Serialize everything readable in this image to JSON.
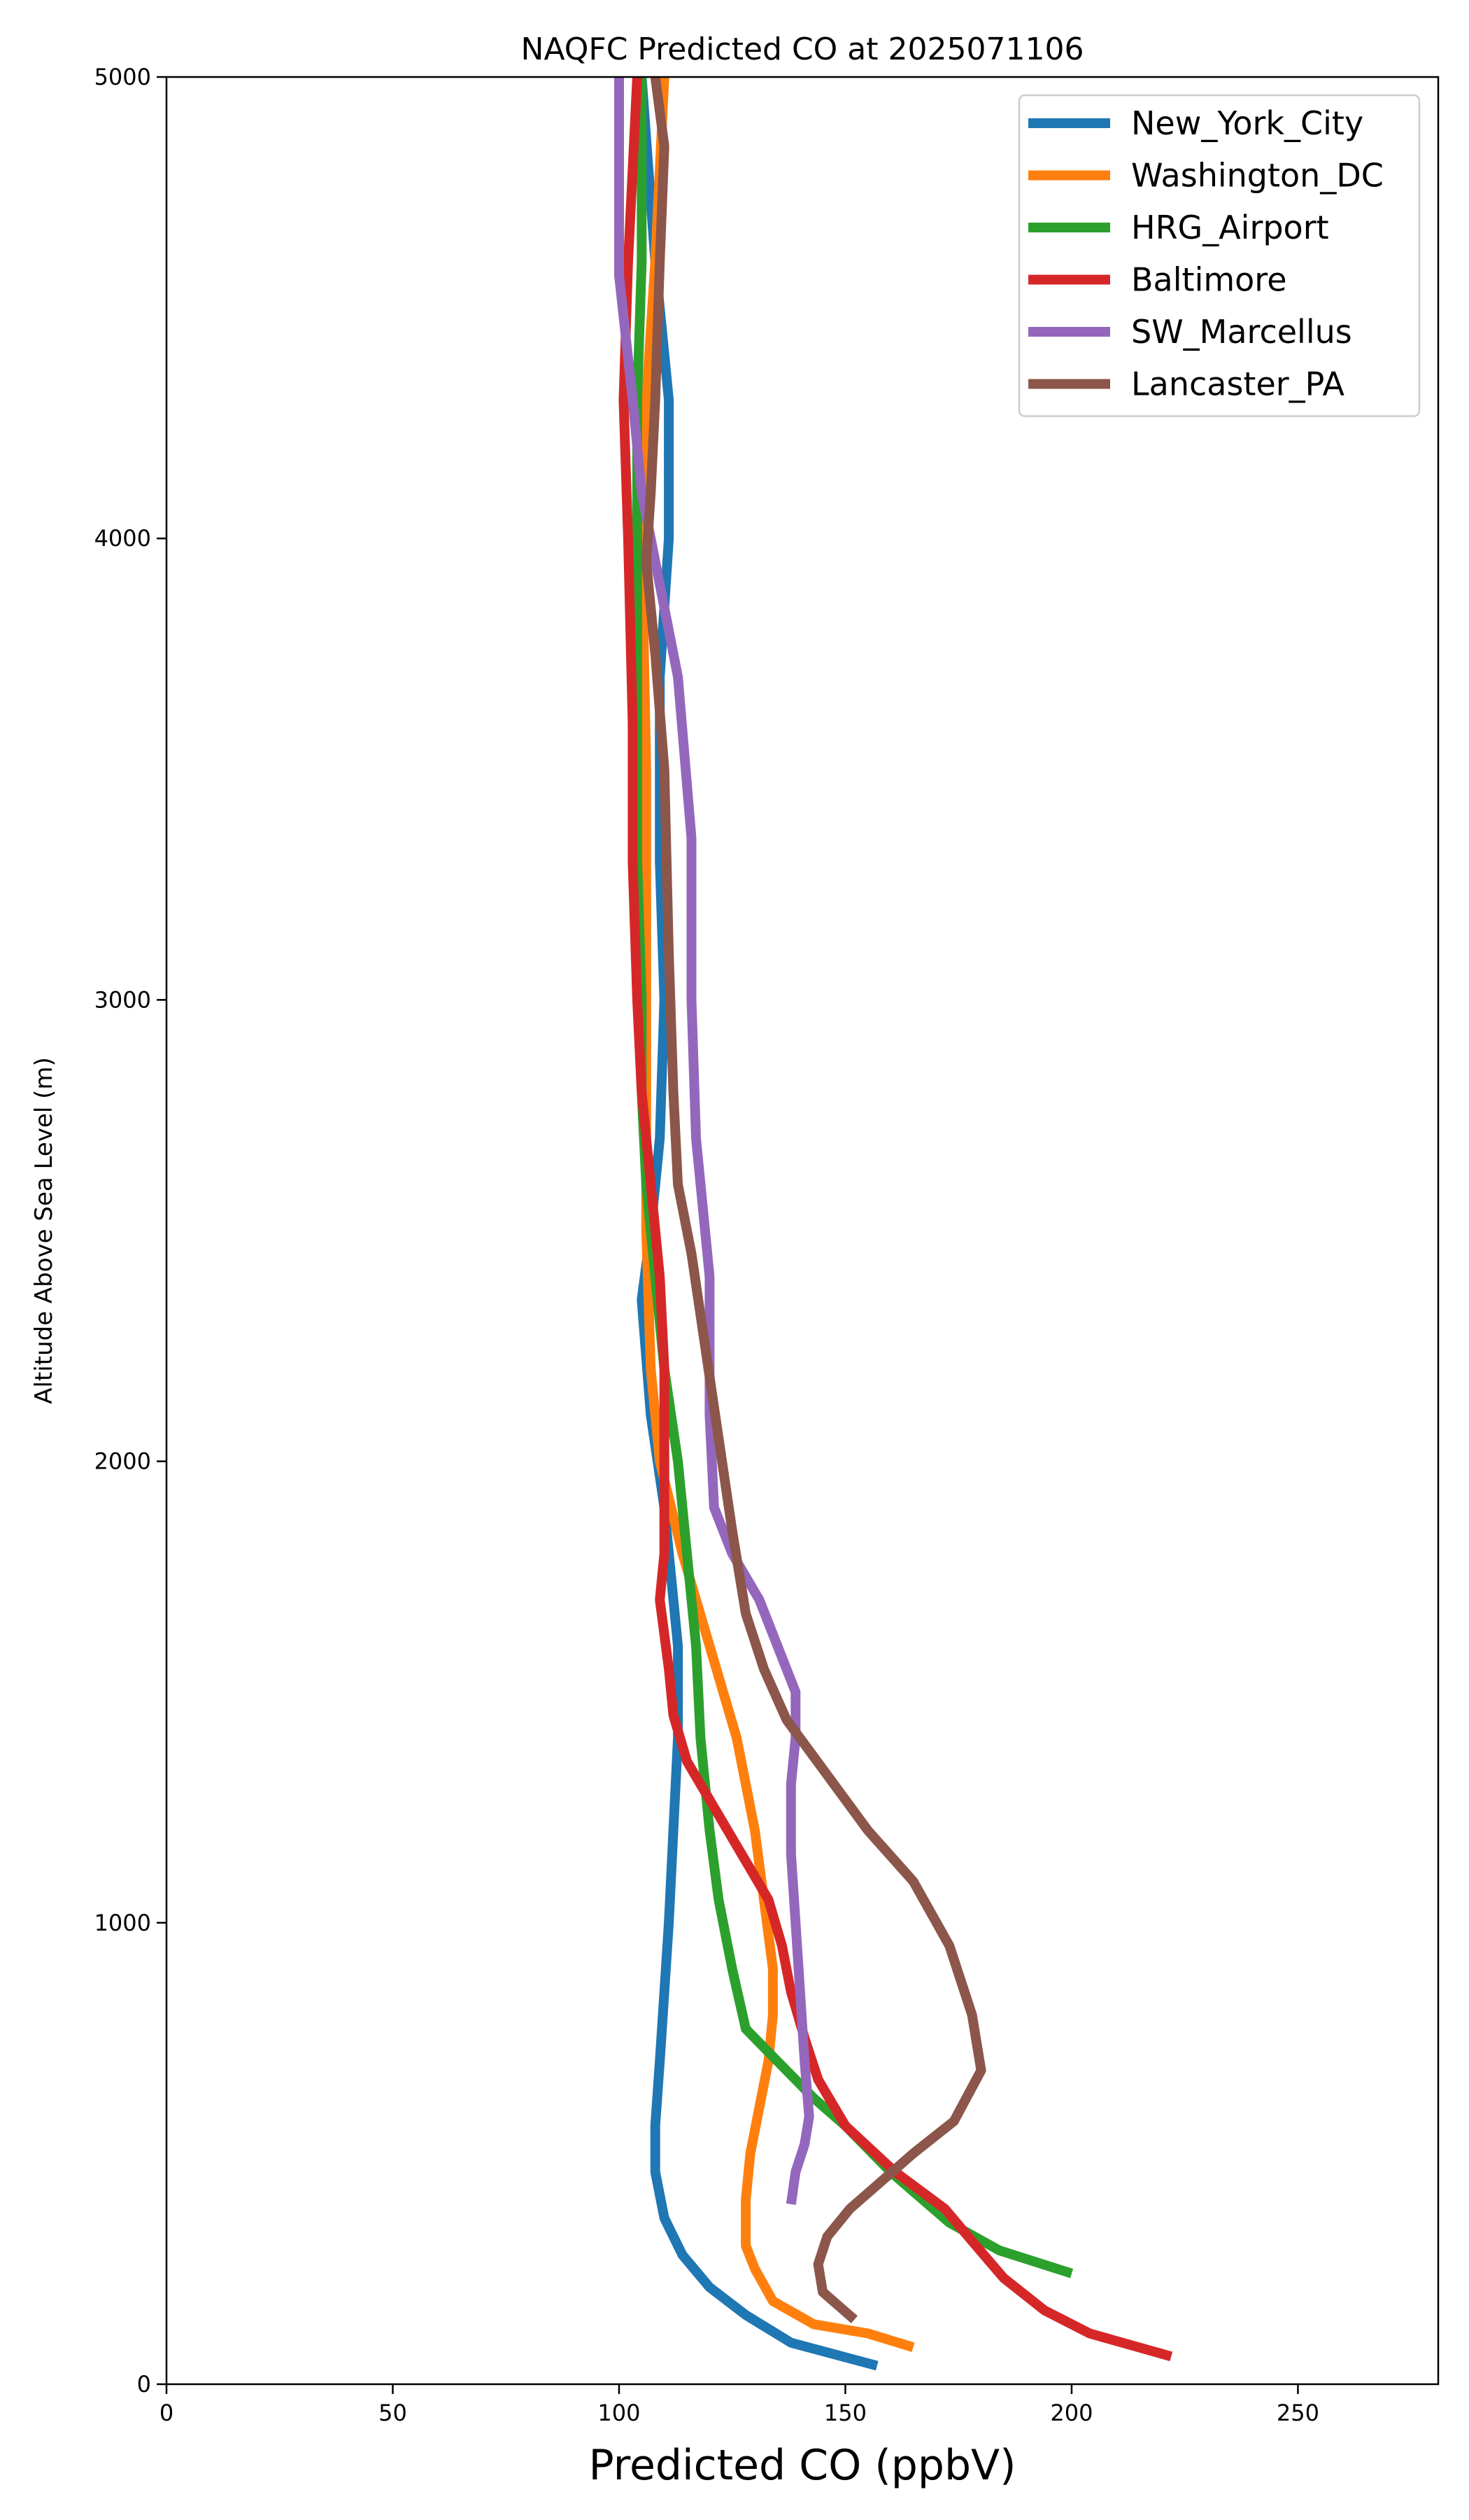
{
  "chart_data": {
    "type": "line",
    "title": "NAQFC Predicted CO at 2025071106",
    "xlabel": "Predicted CO (ppbV)",
    "ylabel": "Altitude Above Sea Level (m)",
    "xlim": [
      0,
      281
    ],
    "ylim": [
      0,
      5000
    ],
    "xticks": [
      0,
      50,
      100,
      150,
      200,
      250
    ],
    "yticks": [
      0,
      1000,
      2000,
      3000,
      4000,
      5000
    ],
    "grid": false,
    "legend_position": "top-right",
    "series": [
      {
        "name": "New_York_City",
        "color": "#1f77b4",
        "points": [
          [
            157,
            40
          ],
          [
            138,
            90
          ],
          [
            128,
            150
          ],
          [
            120,
            210
          ],
          [
            114,
            280
          ],
          [
            110,
            360
          ],
          [
            108,
            460
          ],
          [
            108,
            560
          ],
          [
            109,
            700
          ],
          [
            110,
            850
          ],
          [
            111,
            1000
          ],
          [
            112,
            1200
          ],
          [
            113,
            1400
          ],
          [
            113,
            1600
          ],
          [
            110,
            1900
          ],
          [
            107,
            2100
          ],
          [
            105,
            2350
          ],
          [
            107,
            2500
          ],
          [
            109,
            2700
          ],
          [
            110,
            3000
          ],
          [
            109,
            3300
          ],
          [
            109,
            3700
          ],
          [
            111,
            4000
          ],
          [
            111,
            4300
          ],
          [
            108,
            4600
          ],
          [
            105,
            5000
          ]
        ]
      },
      {
        "name": "Washington_DC",
        "color": "#ff7f0e",
        "points": [
          [
            165,
            80
          ],
          [
            155,
            110
          ],
          [
            143,
            130
          ],
          [
            134,
            180
          ],
          [
            130,
            250
          ],
          [
            128,
            300
          ],
          [
            128,
            400
          ],
          [
            129,
            500
          ],
          [
            131,
            600
          ],
          [
            133,
            700
          ],
          [
            134,
            800
          ],
          [
            134,
            900
          ],
          [
            132,
            1050
          ],
          [
            130,
            1200
          ],
          [
            126,
            1400
          ],
          [
            120,
            1600
          ],
          [
            114,
            1800
          ],
          [
            109,
            2000
          ],
          [
            107,
            2200
          ],
          [
            106,
            2500
          ],
          [
            106,
            3000
          ],
          [
            106,
            3500
          ],
          [
            105,
            4000
          ],
          [
            106,
            4300
          ],
          [
            108,
            4600
          ],
          [
            110,
            5000
          ]
        ]
      },
      {
        "name": "HRG_Airport",
        "color": "#2ca02c",
        "points": [
          [
            200,
            240
          ],
          [
            184,
            290
          ],
          [
            173,
            350
          ],
          [
            160,
            460
          ],
          [
            150,
            560
          ],
          [
            143,
            620
          ],
          [
            135,
            700
          ],
          [
            128,
            770
          ],
          [
            125,
            900
          ],
          [
            122,
            1050
          ],
          [
            120,
            1200
          ],
          [
            118,
            1400
          ],
          [
            117,
            1600
          ],
          [
            115,
            1800
          ],
          [
            113,
            2000
          ],
          [
            110,
            2200
          ],
          [
            108,
            2400
          ],
          [
            106,
            2600
          ],
          [
            105,
            2800
          ],
          [
            105,
            3000
          ],
          [
            104,
            3300
          ],
          [
            104,
            3600
          ],
          [
            104,
            4000
          ],
          [
            104,
            4300
          ],
          [
            105,
            4600
          ],
          [
            105,
            5000
          ]
        ]
      },
      {
        "name": "Baltimore",
        "color": "#d62728",
        "points": [
          [
            222,
            60
          ],
          [
            204,
            110
          ],
          [
            194,
            160
          ],
          [
            185,
            230
          ],
          [
            178,
            310
          ],
          [
            172,
            380
          ],
          [
            161,
            460
          ],
          [
            150,
            560
          ],
          [
            144,
            660
          ],
          [
            141,
            750
          ],
          [
            138,
            850
          ],
          [
            136,
            950
          ],
          [
            133,
            1050
          ],
          [
            127,
            1150
          ],
          [
            121,
            1250
          ],
          [
            115,
            1350
          ],
          [
            112,
            1450
          ],
          [
            111,
            1550
          ],
          [
            109,
            1700
          ],
          [
            110,
            1800
          ],
          [
            110,
            2000
          ],
          [
            110,
            2200
          ],
          [
            109,
            2400
          ],
          [
            107,
            2600
          ],
          [
            105,
            2800
          ],
          [
            104,
            3000
          ],
          [
            103,
            3300
          ],
          [
            103,
            3600
          ],
          [
            102,
            4000
          ],
          [
            101,
            4300
          ],
          [
            102,
            4600
          ],
          [
            104,
            5000
          ]
        ]
      },
      {
        "name": "SW_Marcellus",
        "color": "#9467bd",
        "points": [
          [
            138,
            390
          ],
          [
            139,
            460
          ],
          [
            141,
            520
          ],
          [
            142,
            580
          ],
          [
            141,
            700
          ],
          [
            140,
            850
          ],
          [
            139,
            1000
          ],
          [
            138,
            1150
          ],
          [
            138,
            1300
          ],
          [
            139,
            1400
          ],
          [
            139,
            1500
          ],
          [
            135,
            1600
          ],
          [
            131,
            1700
          ],
          [
            125,
            1800
          ],
          [
            121,
            1900
          ],
          [
            120,
            2100
          ],
          [
            120,
            2400
          ],
          [
            117,
            2700
          ],
          [
            116,
            3000
          ],
          [
            116,
            3350
          ],
          [
            113,
            3700
          ],
          [
            109,
            3900
          ],
          [
            105,
            4100
          ],
          [
            103,
            4300
          ],
          [
            100,
            4570
          ],
          [
            100,
            4800
          ],
          [
            100,
            5000
          ]
        ]
      },
      {
        "name": "Lancaster_PA",
        "color": "#8c564b",
        "points": [
          [
            152,
            140
          ],
          [
            145,
            200
          ],
          [
            144,
            260
          ],
          [
            146,
            320
          ],
          [
            151,
            380
          ],
          [
            158,
            440
          ],
          [
            165,
            500
          ],
          [
            174,
            570
          ],
          [
            180,
            680
          ],
          [
            178,
            800
          ],
          [
            173,
            950
          ],
          [
            165,
            1090
          ],
          [
            155,
            1200
          ],
          [
            146,
            1320
          ],
          [
            137,
            1440
          ],
          [
            132,
            1550
          ],
          [
            128,
            1670
          ],
          [
            125,
            1850
          ],
          [
            122,
            2050
          ],
          [
            119,
            2250
          ],
          [
            116,
            2450
          ],
          [
            113,
            2600
          ],
          [
            112,
            2800
          ],
          [
            111,
            3100
          ],
          [
            110,
            3500
          ],
          [
            108,
            3750
          ],
          [
            106,
            3950
          ],
          [
            107,
            4100
          ],
          [
            108,
            4300
          ],
          [
            109,
            4600
          ],
          [
            110,
            4850
          ],
          [
            108,
            5000
          ]
        ]
      }
    ]
  }
}
